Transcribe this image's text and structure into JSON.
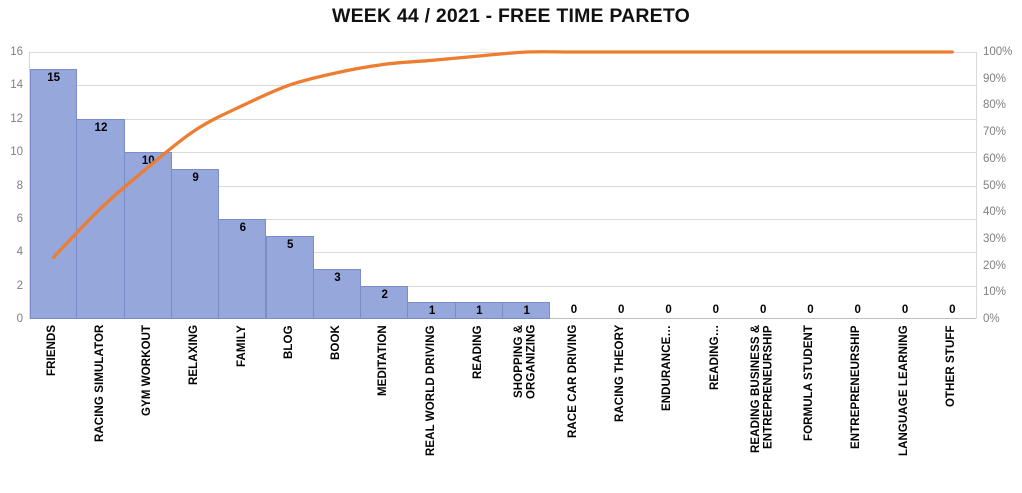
{
  "title": "WEEK 44 / 2021 - FREE TIME PARETO",
  "chart_data": {
    "type": "bar",
    "subtype": "pareto-combo",
    "title": "WEEK 44 / 2021 - FREE TIME PARETO",
    "legend": "none",
    "gridlines": "horizontal",
    "categories": [
      "FRIENDS",
      "RACING SIMULATOR",
      "GYM WORKOUT",
      "RELAXING",
      "FAMILY",
      "BLOG",
      "BOOK",
      "MEDITATION",
      "REAL WORLD DRIVING",
      "READING",
      "SHOPPING &\nORGANIZING",
      "RACE CAR DRIVING",
      "RACING THEORY",
      "ENDURANCE…",
      "READING…",
      "READING BUSINESS &\nENTREPRENEURSHIP",
      "FORMULA STUDENT",
      "ENTREPRENEURSHIP",
      "LANGUAGE LEARNING",
      "OTHER STUFF"
    ],
    "series": [
      {
        "role": "bars",
        "type": "bar",
        "values": [
          15,
          12,
          10,
          9,
          6,
          5,
          3,
          2,
          1,
          1,
          1,
          0,
          0,
          0,
          0,
          0,
          0,
          0,
          0,
          0
        ],
        "data_labels_shown": true,
        "color": "#96A7DB",
        "border_color": "#7B8CC8"
      },
      {
        "role": "cumulative_line",
        "type": "line",
        "values_percent": [
          23.1,
          41.5,
          56.9,
          70.8,
          80.0,
          87.7,
          92.3,
          95.4,
          96.9,
          98.5,
          100,
          100,
          100,
          100,
          100,
          100,
          100,
          100,
          100,
          100
        ],
        "smoothed": true,
        "color": "#ED7D31"
      }
    ],
    "left_axis": {
      "min": 0,
      "max": 16,
      "step": 2,
      "ticks": [
        "16",
        "14",
        "12",
        "10",
        "8",
        "6",
        "4",
        "2",
        "0"
      ]
    },
    "right_axis": {
      "min": "0%",
      "max": "100%",
      "step": "10%",
      "ticks": [
        "100%",
        "90%",
        "80%",
        "70%",
        "60%",
        "50%",
        "40%",
        "30%",
        "20%",
        "10%",
        "0%"
      ]
    },
    "colors": {
      "bar_fill": "#96A7DB",
      "bar_border": "#7B8CC8",
      "line": "#ED7D31",
      "gridline": "#D9D9D9",
      "axis_line": "#BFBFBF",
      "tick_text": "#808080",
      "label_text": "#000000"
    }
  }
}
